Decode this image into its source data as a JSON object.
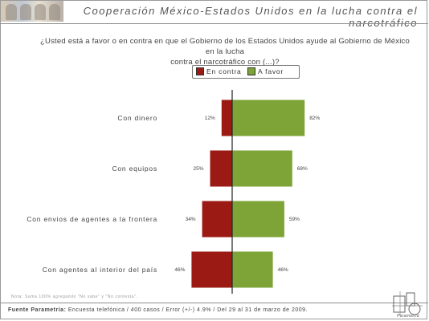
{
  "header": {
    "title": "Cooperación México-Estados Unidos en la lucha contra el narcotráfico"
  },
  "question": {
    "line1": "¿Usted está a favor o en contra en que  el Gobierno de los Estados Unidos ayude al Gobierno de México en la lucha",
    "line2": "contra el  narcotráfico con (...)?"
  },
  "colors": {
    "en_contra": "#9b1b14",
    "a_favor": "#7ea437"
  },
  "chart_data": {
    "type": "bar",
    "orientation": "horizontal-diverging",
    "categories": [
      "Con dinero",
      "Con equipos",
      "Con envios de agentes a la frontera",
      "Con agentes al interior del país"
    ],
    "series": [
      {
        "name": "En contra",
        "values": [
          12,
          25,
          34,
          46
        ],
        "labels": [
          "12%",
          "25%",
          "34%",
          "46%"
        ]
      },
      {
        "name": "A favor",
        "values": [
          82,
          68,
          59,
          46
        ],
        "labels": [
          "82%",
          "68%",
          "59%",
          "46%"
        ]
      }
    ],
    "legend": {
      "position": "top-center"
    },
    "grid": false
  },
  "note": "Nota: Suma 100% agregando \"No sabe\" y \"No contesta\".",
  "footer": {
    "source_label": "Fuente Parametría:",
    "source_text": " Encuesta telefónica / 400 casos / Error (+/-) 4.9% / Del 29 al 31 de marzo de 2009."
  },
  "logo": {
    "text": "Parametría"
  }
}
